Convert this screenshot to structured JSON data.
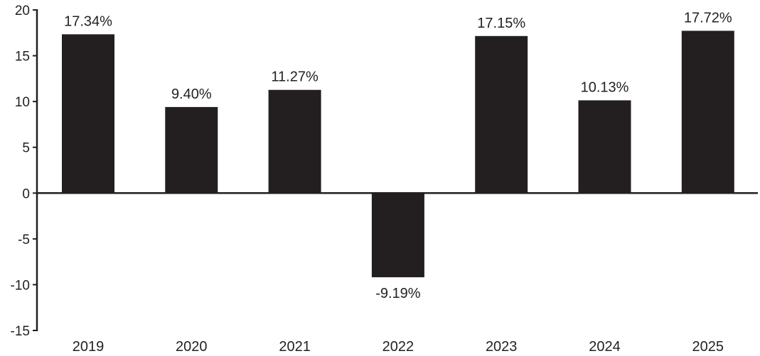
{
  "chart_data": {
    "type": "bar",
    "title": "",
    "xlabel": "",
    "ylabel": "",
    "categories": [
      "2019",
      "2020",
      "2021",
      "2022",
      "2023",
      "2024",
      "2025"
    ],
    "values": [
      17.34,
      9.4,
      11.27,
      -9.19,
      17.15,
      10.13,
      17.72
    ],
    "data_labels": [
      "17.34%",
      "9.40%",
      "11.27%",
      "-9.19%",
      "17.15%",
      "10.13%",
      "17.72%"
    ],
    "ylim": [
      -15,
      20
    ],
    "yticks": [
      20,
      15,
      10,
      5,
      0,
      -5,
      -10,
      -15
    ],
    "ytick_labels": [
      "20",
      "15",
      "10",
      "5",
      "0",
      "-5",
      "-10",
      "-15"
    ],
    "grid": false,
    "legend": "none",
    "bar_color": "#231f20"
  }
}
